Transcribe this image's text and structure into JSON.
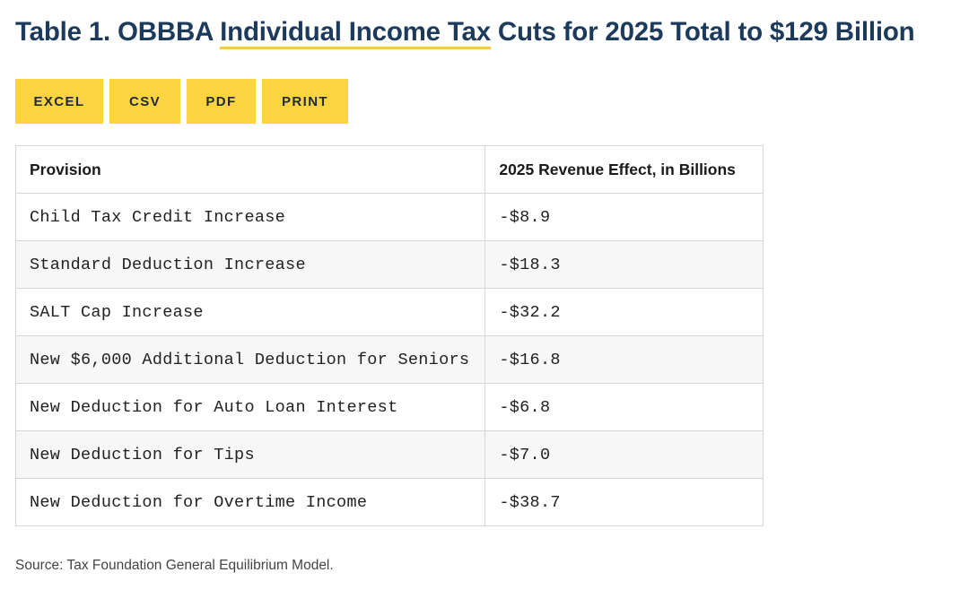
{
  "title": {
    "prefix": "Table 1. OBBBA ",
    "highlight": "Individual Income Tax",
    "suffix": " Cuts for 2025 Total to $129 Billion"
  },
  "toolbar": {
    "excel_label": "EXCEL",
    "csv_label": "CSV",
    "pdf_label": "PDF",
    "print_label": "PRINT"
  },
  "table": {
    "headers": [
      "Provision",
      "2025 Revenue Effect, in Billions"
    ],
    "rows": [
      {
        "provision": "Child Tax Credit Increase",
        "effect": "-$8.9"
      },
      {
        "provision": "Standard Deduction Increase",
        "effect": "-$18.3"
      },
      {
        "provision": "SALT Cap Increase",
        "effect": "-$32.2"
      },
      {
        "provision": "New $6,000 Additional Deduction for Seniors",
        "effect": "-$16.8"
      },
      {
        "provision": "New Deduction for Auto Loan Interest",
        "effect": "-$6.8"
      },
      {
        "provision": "New Deduction for Tips",
        "effect": "-$7.0"
      },
      {
        "provision": "New Deduction for Overtime Income",
        "effect": "-$38.7"
      }
    ]
  },
  "source": "Source: Tax Foundation General Equilibrium Model.",
  "colors": {
    "title": "#1b3a5c",
    "button": "#fcd43f",
    "underline": "#f7c948"
  }
}
